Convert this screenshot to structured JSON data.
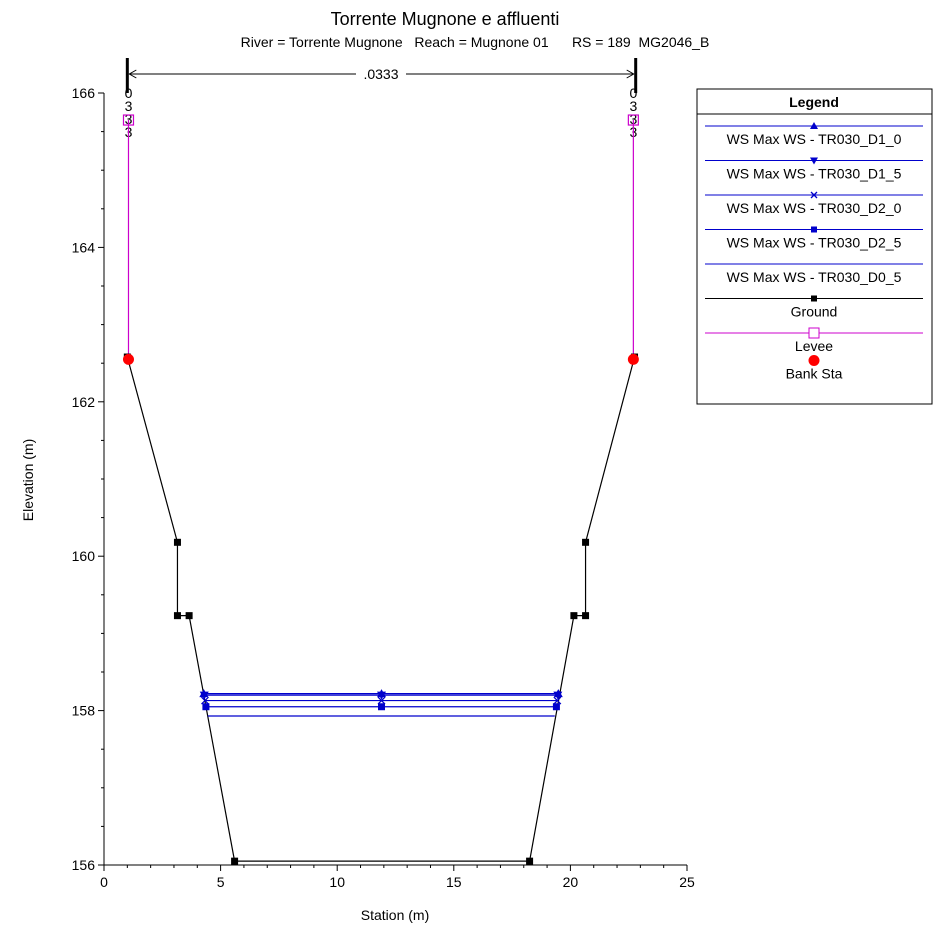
{
  "chart_data": {
    "type": "line",
    "title": "Torrente Mugnone e affluenti",
    "subtitle": "River = Torrente Mugnone   Reach = Mugnone 01      RS = 189  MG2046_B",
    "xlabel": "Station (m)",
    "ylabel": "Elevation (m)",
    "xlim": [
      0,
      25
    ],
    "ylim": [
      156,
      166
    ],
    "xticks": [
      "0",
      "5",
      "10",
      "15",
      "20",
      "25"
    ],
    "yticks": [
      "156",
      "158",
      "160",
      "162",
      "164",
      "166"
    ],
    "manning_label": ".0333",
    "manning_span": [
      1.0,
      22.8
    ],
    "manning_vertical_left": [
      "0",
      "3",
      "3",
      "3"
    ],
    "manning_vertical_right": [
      "0",
      "3",
      "3",
      "3"
    ],
    "legend_title": "Legend",
    "legend_position": "right",
    "ground": {
      "name": "Ground",
      "color": "#000000",
      "x": [
        1.0,
        3.15,
        3.15,
        3.65,
        5.6,
        18.25,
        20.15,
        20.65,
        20.65,
        22.75
      ],
      "y": [
        162.58,
        160.18,
        159.23,
        159.23,
        156.05,
        156.05,
        159.23,
        159.23,
        160.18,
        162.58
      ]
    },
    "levee": {
      "name": "Levee",
      "color": "#cc00cc",
      "left": {
        "x": 1.05,
        "y_top": 165.65,
        "y_bottom": 162.55
      },
      "right": {
        "x": 22.7,
        "y_top": 165.65,
        "y_bottom": 162.55
      }
    },
    "bank_sta": {
      "name": "Bank Sta",
      "color": "#ff0000",
      "points": [
        {
          "x": 1.05,
          "y": 162.55
        },
        {
          "x": 22.7,
          "y": 162.55
        }
      ]
    },
    "ws_series": [
      {
        "name": "WS Max WS - TR030_D1_0",
        "marker": "triangle-up",
        "x": [
          4.28,
          19.48
        ],
        "y": 158.22
      },
      {
        "name": "WS Max WS - TR030_D1_5",
        "marker": "triangle-down",
        "x": [
          4.3,
          19.46
        ],
        "y": 158.2
      },
      {
        "name": "WS Max WS - TR030_D2_0",
        "marker": "x",
        "x": [
          4.33,
          19.44
        ],
        "y": 158.13
      },
      {
        "name": "WS Max WS - TR030_D2_5",
        "marker": "square",
        "x": [
          4.37,
          19.4
        ],
        "y": 158.05
      },
      {
        "name": "WS Max WS - TR030_D0_5",
        "marker": "none",
        "x": [
          4.45,
          19.33
        ],
        "y": 157.93
      }
    ],
    "ws_mid_marker_x": 11.9,
    "ws_color": "#0000cc"
  }
}
